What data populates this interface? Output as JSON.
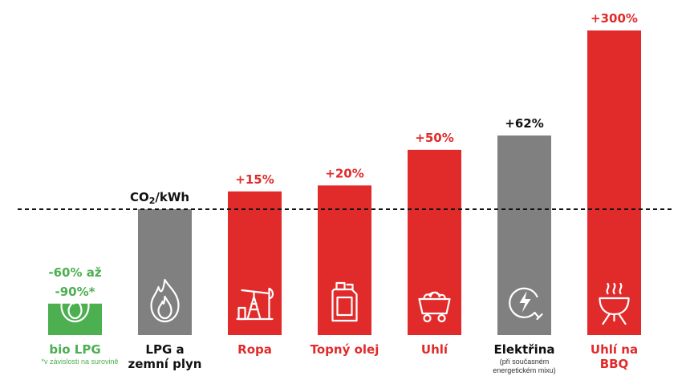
{
  "chart_data": {
    "type": "bar",
    "baseline_label": {
      "main": "CO",
      "sub": "2",
      "rest": "/kWh"
    },
    "categories": [
      {
        "name_lines": [
          "bio LPG"
        ],
        "note_lines": [
          "*v závislosti na surovině"
        ],
        "value": -75,
        "value_label_lines": [
          "-60% až",
          "-90%*"
        ],
        "color": "#4caf50",
        "icon": "flame-icon"
      },
      {
        "name_lines": [
          "LPG a",
          "zemní plyn"
        ],
        "note_lines": [],
        "value": 0,
        "value_label_lines": [],
        "color": "#808080",
        "icon": "flame-icon"
      },
      {
        "name_lines": [
          "Ropa"
        ],
        "note_lines": [],
        "value": 15,
        "value_label_lines": [
          "+15%"
        ],
        "color": "#e12b2b",
        "icon": "oil-pump-icon"
      },
      {
        "name_lines": [
          "Topný olej"
        ],
        "note_lines": [],
        "value": 20,
        "value_label_lines": [
          "+20%"
        ],
        "color": "#e12b2b",
        "icon": "jerrycan-icon"
      },
      {
        "name_lines": [
          "Uhlí"
        ],
        "note_lines": [],
        "value": 50,
        "value_label_lines": [
          "+50%"
        ],
        "color": "#e12b2b",
        "icon": "coal-cart-icon"
      },
      {
        "name_lines": [
          "Elektřina"
        ],
        "note_lines": [
          "(při současném",
          "energetickém mixu)"
        ],
        "value": 62,
        "value_label_lines": [
          "+62%"
        ],
        "color": "#808080",
        "icon": "electric-plug-icon"
      },
      {
        "name_lines": [
          "Uhlí na",
          "BBQ"
        ],
        "note_lines": [],
        "value": 300,
        "value_label_lines": [
          "+300%"
        ],
        "color": "#e12b2b",
        "icon": "bbq-grill-icon"
      }
    ],
    "unit": "%",
    "reference_line": {
      "value": 0,
      "style": "dashed"
    },
    "grid": false,
    "legend": "none",
    "colors": {
      "green": "#4caf50",
      "gray": "#808080",
      "red": "#e12b2b",
      "dark_text": "#111111"
    }
  }
}
